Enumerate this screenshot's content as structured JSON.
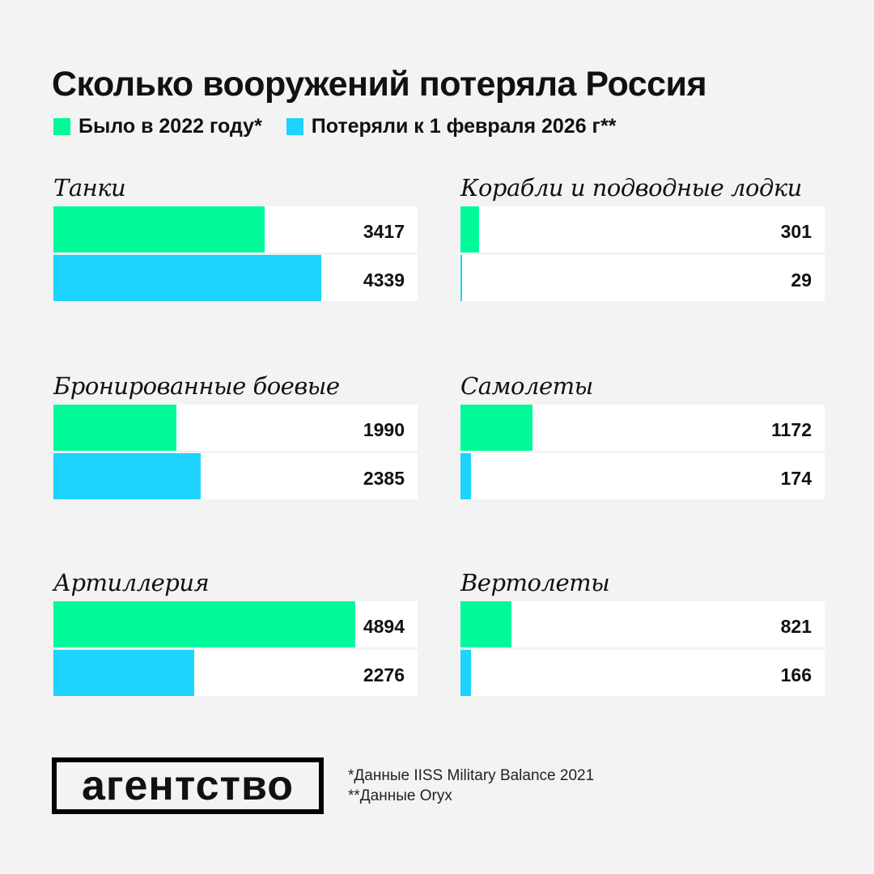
{
  "title": "Сколько вооружений потеряла Россия",
  "colors": {
    "had": "#00fa9a",
    "lost": "#1ed3fd"
  },
  "legend": [
    "Было в 2022 году*",
    "Потеряли к 1 февраля 2026 г**"
  ],
  "chart_data": {
    "type": "bar",
    "title": "Сколько вооружений потеряла Россия",
    "series_names": [
      "Было в 2022 году*",
      "Потеряли к 1 февраля 2026 г**"
    ],
    "panels": [
      {
        "name": "Танки",
        "values": [
          3417,
          4339
        ]
      },
      {
        "name": "Корабли и подводные лодки",
        "values": [
          301,
          29
        ]
      },
      {
        "name": "Бронированные боевые машины",
        "values": [
          1990,
          2385
        ]
      },
      {
        "name": "Самолеты",
        "values": [
          1172,
          174
        ]
      },
      {
        "name": "Артиллерия",
        "values": [
          4894,
          2276
        ]
      },
      {
        "name": "Вертолеты",
        "values": [
          821,
          166
        ]
      }
    ],
    "scale_max": 5900
  },
  "logo": "агентство",
  "notes": [
    "*Данные IISS Military Balance 2021",
    "**Данные Oryx"
  ]
}
